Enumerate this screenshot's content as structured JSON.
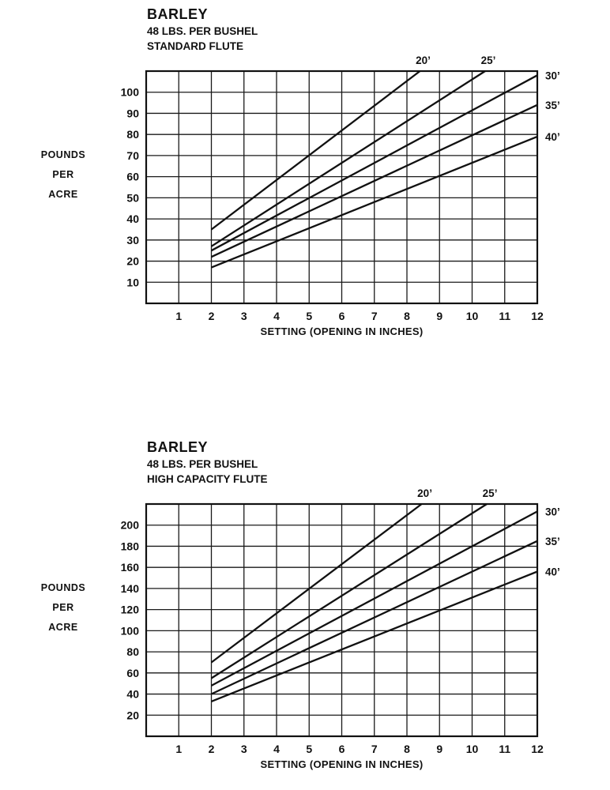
{
  "chart_data": [
    {
      "type": "line",
      "title": "BARLEY",
      "subtitle1": "48 LBS. PER BUSHEL",
      "subtitle2": "STANDARD FLUTE",
      "ylabel_lines": [
        "POUNDS",
        "PER",
        "ACRE"
      ],
      "xlabel": "SETTING (OPENING IN INCHES)",
      "xlim": [
        0,
        12
      ],
      "ylim": [
        0,
        110
      ],
      "xticks": [
        1,
        2,
        3,
        4,
        5,
        6,
        7,
        8,
        9,
        10,
        11,
        12
      ],
      "yticks": [
        10,
        20,
        30,
        40,
        50,
        60,
        70,
        80,
        90,
        100
      ],
      "grid": true,
      "series": [
        {
          "name": "20’",
          "x": [
            2,
            8.4
          ],
          "y": [
            35,
            110
          ],
          "label_pos": "top"
        },
        {
          "name": "25’",
          "x": [
            2,
            10.4
          ],
          "y": [
            27,
            110
          ],
          "label_pos": "top"
        },
        {
          "name": "30’",
          "x": [
            2,
            12
          ],
          "y": [
            25,
            108
          ],
          "label_pos": "right"
        },
        {
          "name": "35’",
          "x": [
            2,
            12
          ],
          "y": [
            22,
            94
          ],
          "label_pos": "right"
        },
        {
          "name": "40’",
          "x": [
            2,
            12
          ],
          "y": [
            17,
            79
          ],
          "label_pos": "right"
        }
      ]
    },
    {
      "type": "line",
      "title": "BARLEY",
      "subtitle1": "48 LBS. PER BUSHEL",
      "subtitle2": "HIGH CAPACITY FLUTE",
      "ylabel_lines": [
        "POUNDS",
        "PER",
        "ACRE"
      ],
      "xlabel": "SETTING (OPENING IN INCHES)",
      "xlim": [
        0,
        12
      ],
      "ylim": [
        0,
        220
      ],
      "xticks": [
        1,
        2,
        3,
        4,
        5,
        6,
        7,
        8,
        9,
        10,
        11,
        12
      ],
      "yticks": [
        20,
        40,
        60,
        80,
        100,
        120,
        140,
        160,
        180,
        200
      ],
      "grid": true,
      "series": [
        {
          "name": "20’",
          "x": [
            2,
            8.45
          ],
          "y": [
            70,
            220
          ],
          "label_pos": "top"
        },
        {
          "name": "25’",
          "x": [
            2,
            10.45
          ],
          "y": [
            55,
            220
          ],
          "label_pos": "top"
        },
        {
          "name": "30’",
          "x": [
            2,
            12
          ],
          "y": [
            48,
            213
          ],
          "label_pos": "right"
        },
        {
          "name": "35’",
          "x": [
            2,
            12
          ],
          "y": [
            40,
            185
          ],
          "label_pos": "right"
        },
        {
          "name": "40’",
          "x": [
            2,
            12
          ],
          "y": [
            33,
            156
          ],
          "label_pos": "right"
        }
      ]
    }
  ]
}
